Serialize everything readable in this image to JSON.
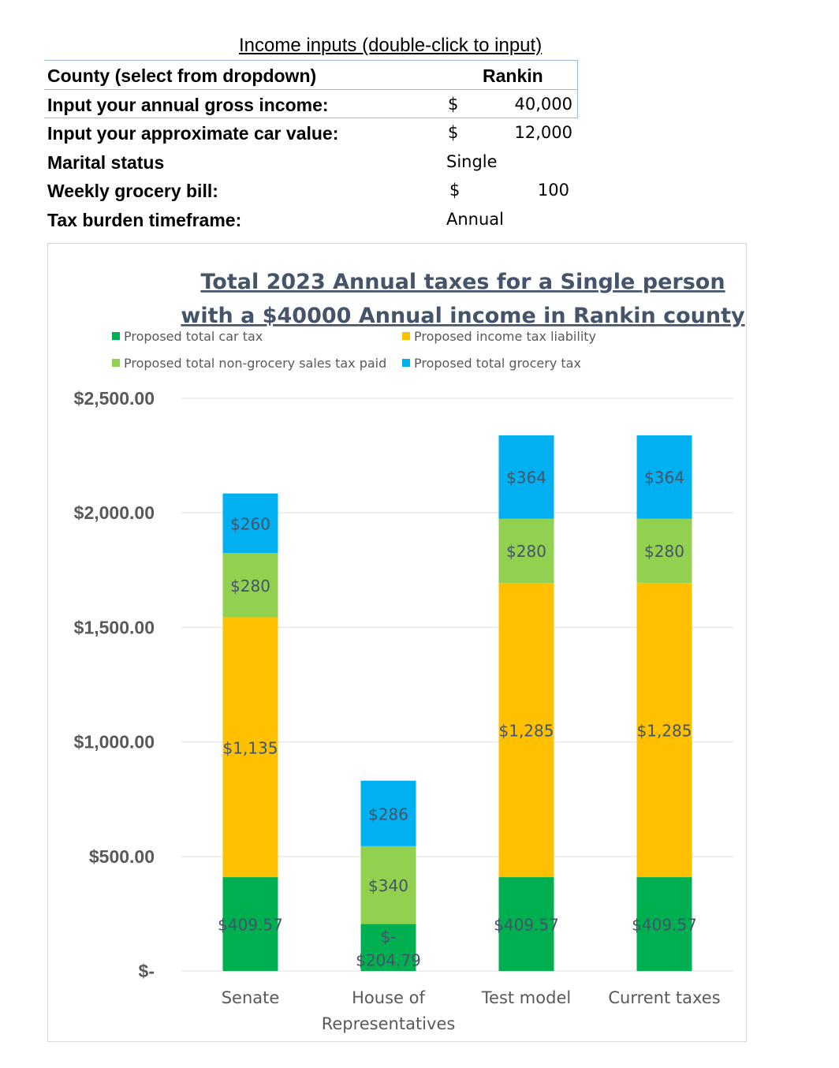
{
  "inputs": {
    "title": "Income inputs (double-click to input)",
    "county_label": "County (select from dropdown)",
    "county_value": "Rankin",
    "income_label": "Input your annual gross income:",
    "income_currency": "$",
    "income_value": "40,000",
    "car_label": "Input your approximate car value:",
    "car_currency": "$",
    "car_value": "12,000",
    "marital_label": "Marital status",
    "marital_value": "Single",
    "grocery_label": "Weekly grocery bill:",
    "grocery_currency": "$",
    "grocery_value": "100",
    "timeframe_label": "Tax burden timeframe:",
    "timeframe_value": "Annual"
  },
  "chart_data": {
    "type": "bar",
    "stacked": true,
    "title": [
      "Total 2023 Annual taxes for a Single person",
      "with a $40000 Annual income in Rankin county"
    ],
    "categories": [
      [
        "Senate"
      ],
      [
        "House of",
        "Representatives"
      ],
      [
        "Test model"
      ],
      [
        "Current taxes"
      ]
    ],
    "series": [
      {
        "name": "Proposed total car tax",
        "color": "#00b050",
        "values": [
          409.57,
          204.79,
          409.57,
          409.57
        ],
        "labels": [
          [
            "$409.57"
          ],
          [
            "$-",
            "$204.79"
          ],
          [
            "$409.57"
          ],
          [
            "$409.57"
          ]
        ]
      },
      {
        "name": "Proposed income tax liability",
        "color": "#ffc000",
        "values": [
          1135,
          0,
          1285,
          1285
        ],
        "labels": [
          [
            "$1,135"
          ],
          [],
          [
            "$1,285"
          ],
          [
            "$1,285"
          ]
        ]
      },
      {
        "name": "Proposed total non-grocery sales tax paid",
        "color": "#92d050",
        "values": [
          280,
          340,
          280,
          280
        ],
        "labels": [
          [
            "$280"
          ],
          [
            "$340"
          ],
          [
            "$280"
          ],
          [
            "$280"
          ]
        ]
      },
      {
        "name": "Proposed total grocery tax",
        "color": "#00b0f0",
        "values": [
          260,
          286,
          364,
          364
        ],
        "labels": [
          [
            "$260"
          ],
          [
            "$286"
          ],
          [
            "$364"
          ],
          [
            "$364"
          ]
        ]
      }
    ],
    "legend": [
      {
        "name": "Proposed total car tax",
        "color": "#00b050"
      },
      {
        "name": "Proposed income tax liability",
        "color": "#ffc000"
      },
      {
        "name": "Proposed total non-grocery sales tax paid",
        "color": "#92d050"
      },
      {
        "name": "Proposed total grocery tax",
        "color": "#00b0f0"
      }
    ],
    "legend_position": "top",
    "ylim": [
      0,
      2500
    ],
    "yticks": [
      0,
      500,
      1000,
      1500,
      2000,
      2500
    ],
    "ytick_labels": [
      "$-",
      "$500.00",
      "$1,000.00",
      "$1,500.00",
      "$2,000.00",
      "$2,500.00"
    ],
    "grid": true
  }
}
